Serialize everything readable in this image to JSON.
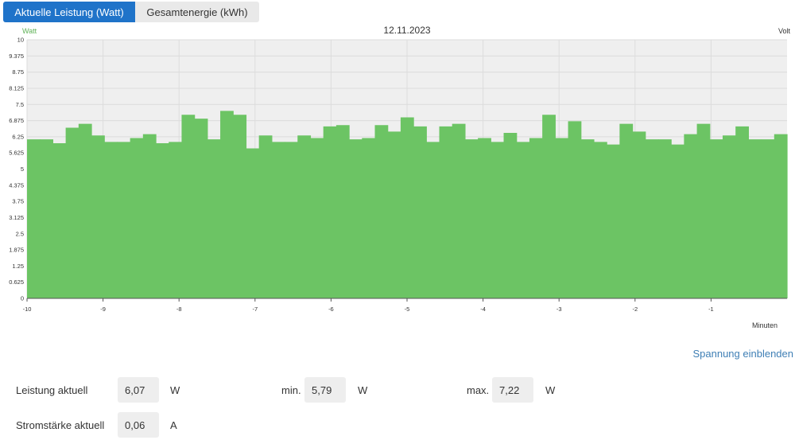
{
  "tabs": [
    {
      "label": "Aktuelle Leistung (Watt)",
      "active": true
    },
    {
      "label": "Gesamtenergie (kWh)",
      "active": false
    }
  ],
  "chart_data": {
    "type": "bar",
    "title": "12.11.2023",
    "ylabel_left": "Watt",
    "ylabel_right": "Volt",
    "xlabel": "Minuten",
    "ylim": [
      0,
      10
    ],
    "xlim": [
      -10,
      0
    ],
    "yticks": [
      "0",
      "0.625",
      "1.25",
      "1.875",
      "2.5",
      "3.125",
      "3.75",
      "4.375",
      "5",
      "5.625",
      "6.25",
      "6.875",
      "7.5",
      "8.125",
      "8.75",
      "9.375",
      "10"
    ],
    "xticks": [
      "-10",
      "-9",
      "-8",
      "-7",
      "-6",
      "-5",
      "-4",
      "-3",
      "-2",
      "-1"
    ],
    "grid": true,
    "series": [
      {
        "color": "#6cc464",
        "values": [
          6.15,
          6.15,
          6.0,
          6.6,
          6.75,
          6.3,
          6.05,
          6.05,
          6.2,
          6.35,
          6.0,
          6.05,
          7.1,
          6.95,
          6.15,
          7.25,
          7.1,
          5.8,
          6.3,
          6.05,
          6.05,
          6.3,
          6.2,
          6.65,
          6.7,
          6.15,
          6.2,
          6.7,
          6.45,
          7.0,
          6.65,
          6.05,
          6.65,
          6.75,
          6.15,
          6.2,
          6.05,
          6.4,
          6.05,
          6.2,
          7.1,
          6.2,
          6.85,
          6.15,
          6.05,
          5.95,
          6.75,
          6.45,
          6.15,
          6.15,
          5.95,
          6.35,
          6.75,
          6.15,
          6.3,
          6.65,
          6.15,
          6.15,
          6.35
        ]
      }
    ]
  },
  "voltage_link": "Spannung einblenden",
  "stats": {
    "power_label": "Leistung aktuell",
    "power_value": "6,07",
    "power_unit": "W",
    "min_label": "min.",
    "min_value": "5,79",
    "min_unit": "W",
    "max_label": "max.",
    "max_value": "7,22",
    "max_unit": "W",
    "current_label": "Stromstärke aktuell",
    "current_value": "0,06",
    "current_unit": "A"
  }
}
